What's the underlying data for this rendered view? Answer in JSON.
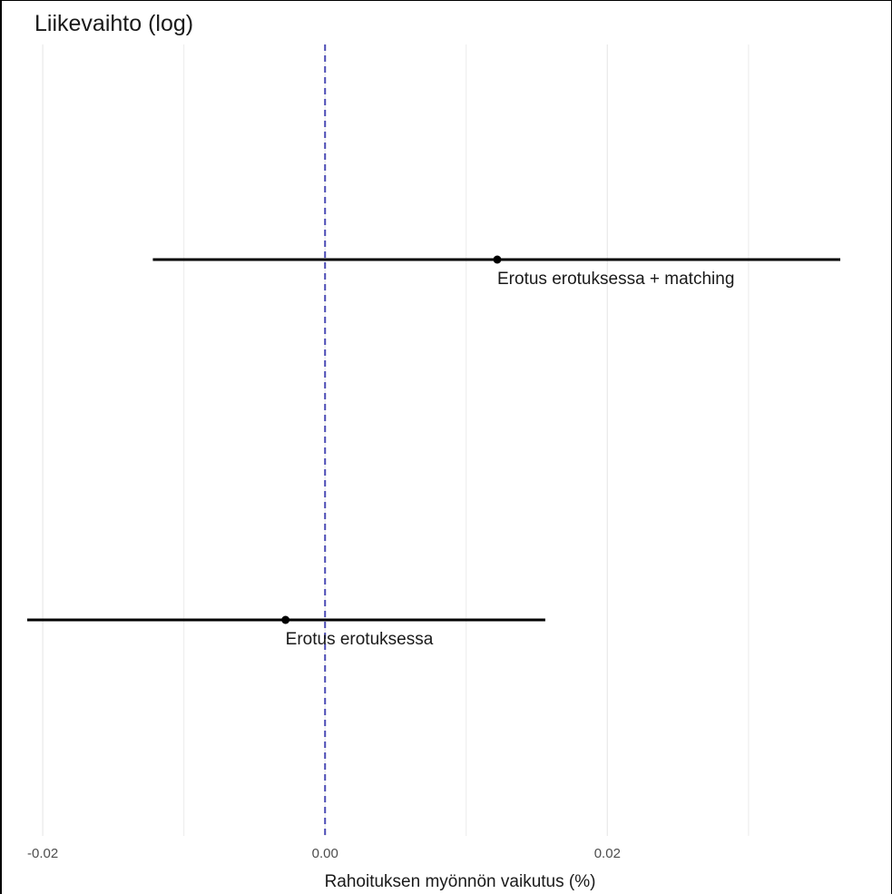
{
  "chart_data": {
    "type": "scatter",
    "subtype": "coefficient-plot-with-intervals",
    "title": "Liikevaihto (log)",
    "xlabel": "Rahoituksen myönnön vaikutus (%)",
    "ylabel": "",
    "xlim": [
      -0.0229,
      0.0401
    ],
    "x_ticks": [
      {
        "value": -0.02,
        "label": "-0.02"
      },
      {
        "value": 0.0,
        "label": "0.00"
      },
      {
        "value": 0.02,
        "label": "0.02"
      }
    ],
    "x_minor_gridlines": [
      -0.01,
      0.01,
      0.03
    ],
    "reference_line": {
      "x": 0.0,
      "style": "dashed",
      "color": "#4b4bb5"
    },
    "grid": "vertical",
    "points": [
      {
        "label": "Erotus erotuksessa + matching",
        "estimate": 0.0122,
        "lower": -0.0122,
        "upper": 0.0365
      },
      {
        "label": "Erotus erotuksessa",
        "estimate": -0.0028,
        "lower": -0.0211,
        "upper": 0.0156
      }
    ],
    "colors": {
      "interval": "#000000",
      "point": "#000000",
      "grid": "#ebebeb"
    }
  }
}
